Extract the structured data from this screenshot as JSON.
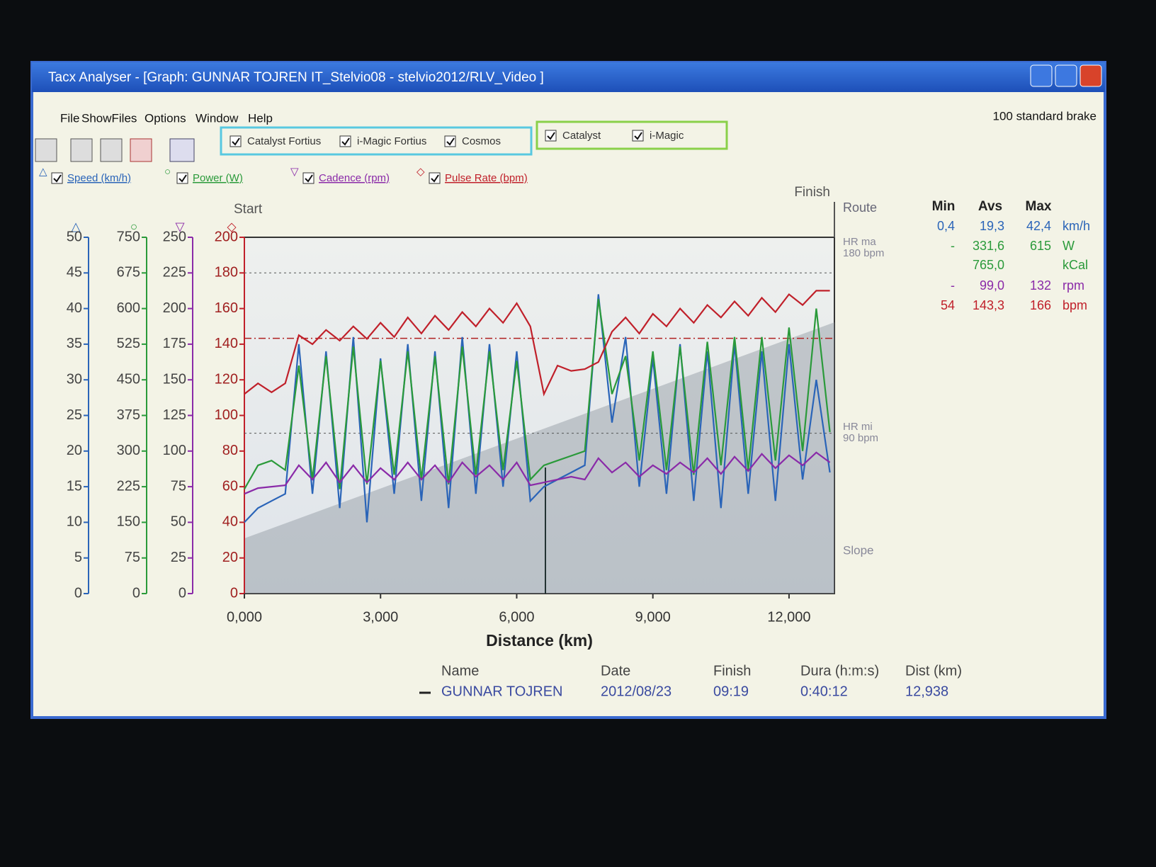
{
  "window": {
    "title": "Tacx Analyser - [Graph:   GUNNAR TOJREN  IT_Stelvio08 - stelvio2012/RLV_Video  ]",
    "menu": [
      "File",
      "ShowFiles",
      "Options",
      "Window",
      "Help"
    ],
    "brake": "100 standard brake",
    "filters": [
      "Catalyst Fortius",
      "i-Magic Fortius",
      "Cosmos",
      "Catalyst",
      "i-Magic"
    ],
    "channels": [
      {
        "symbol": "△",
        "label": "Speed (km/h)"
      },
      {
        "symbol": "○",
        "label": "Power (W)"
      },
      {
        "symbol": "▽",
        "label": "Cadence (rpm)"
      },
      {
        "symbol": "◇",
        "label": "Pulse Rate (bpm)"
      }
    ]
  },
  "chart_data": {
    "type": "line",
    "xlabel": "Distance (km)",
    "start_label": "Start",
    "finish_label": "Finish",
    "route_label": "Route",
    "hr_max_label": [
      "HR ma",
      "180 bpm"
    ],
    "hr_min_label": [
      "HR mi",
      "90 bpm"
    ],
    "slope_label": "Slope",
    "hr_max": 180,
    "hr_min": 90,
    "pulse_avg": 143.3,
    "xlim": [
      0,
      13
    ],
    "xticks": [
      {
        "value": 0,
        "label": "0,000"
      },
      {
        "value": 3,
        "label": "3,000"
      },
      {
        "value": 6,
        "label": "6,000"
      },
      {
        "value": 9,
        "label": "9,000"
      },
      {
        "value": 12,
        "label": "12,000"
      }
    ],
    "axes": [
      {
        "symbol": "△",
        "color": "#2a64b8",
        "ylim": [
          0,
          50
        ],
        "yticks": [
          0,
          5,
          10,
          15,
          20,
          25,
          30,
          35,
          40,
          45,
          50
        ]
      },
      {
        "symbol": "○",
        "color": "#2a9a3a",
        "ylim": [
          0,
          750
        ],
        "yticks": [
          0,
          75,
          150,
          225,
          300,
          375,
          450,
          525,
          600,
          675,
          750
        ]
      },
      {
        "symbol": "▽",
        "color": "#8a2aa8",
        "ylim": [
          0,
          250
        ],
        "yticks": [
          0,
          25,
          50,
          75,
          100,
          125,
          150,
          175,
          200,
          225,
          250
        ]
      },
      {
        "symbol": "◇",
        "color": "#c0202a",
        "ylim": [
          0,
          200
        ],
        "yticks": [
          0,
          20,
          40,
          60,
          80,
          100,
          120,
          140,
          160,
          180,
          200
        ]
      }
    ],
    "x": [
      0,
      0.3,
      0.6,
      0.9,
      1.2,
      1.5,
      1.8,
      2.1,
      2.4,
      2.7,
      3.0,
      3.3,
      3.6,
      3.9,
      4.2,
      4.5,
      4.8,
      5.1,
      5.4,
      5.7,
      6.0,
      6.3,
      6.6,
      6.9,
      7.2,
      7.5,
      7.8,
      8.1,
      8.4,
      8.7,
      9.0,
      9.3,
      9.6,
      9.9,
      10.2,
      10.5,
      10.8,
      11.1,
      11.4,
      11.7,
      12.0,
      12.3,
      12.6,
      12.9
    ],
    "series": [
      {
        "name": "Speed (km/h)",
        "axis": 0,
        "color": "#2a64b8",
        "values": [
          10,
          12,
          13,
          14,
          35,
          14,
          34,
          12,
          36,
          10,
          33,
          14,
          35,
          13,
          34,
          12,
          36,
          14,
          35,
          15,
          34,
          13,
          15,
          16,
          17,
          18,
          42,
          24,
          36,
          15,
          33,
          14,
          35,
          13,
          34,
          12,
          35,
          14,
          34,
          13,
          35,
          16,
          30,
          17
        ]
      },
      {
        "name": "Power (W)",
        "axis": 1,
        "color": "#2a9a3a",
        "values": [
          220,
          270,
          280,
          260,
          480,
          240,
          500,
          220,
          520,
          230,
          490,
          250,
          510,
          240,
          500,
          230,
          520,
          250,
          510,
          260,
          490,
          240,
          270,
          280,
          290,
          300,
          620,
          420,
          500,
          280,
          510,
          260,
          520,
          250,
          530,
          270,
          540,
          260,
          540,
          280,
          560,
          300,
          600,
          340
        ]
      },
      {
        "name": "Cadence (rpm)",
        "axis": 2,
        "color": "#8a2aa8",
        "values": [
          70,
          74,
          75,
          76,
          90,
          80,
          92,
          78,
          90,
          78,
          88,
          80,
          92,
          80,
          90,
          78,
          92,
          82,
          90,
          80,
          92,
          76,
          78,
          80,
          82,
          80,
          95,
          85,
          92,
          82,
          90,
          84,
          92,
          85,
          95,
          84,
          96,
          86,
          98,
          88,
          97,
          90,
          99,
          92
        ]
      },
      {
        "name": "Pulse Rate (bpm)",
        "axis": 3,
        "color": "#c0202a",
        "values": [
          112,
          118,
          113,
          118,
          145,
          140,
          148,
          142,
          150,
          143,
          152,
          144,
          155,
          146,
          156,
          148,
          158,
          150,
          160,
          152,
          163,
          150,
          112,
          128,
          125,
          126,
          130,
          147,
          155,
          146,
          157,
          150,
          160,
          152,
          162,
          155,
          164,
          156,
          166,
          158,
          168,
          162,
          170,
          170
        ]
      }
    ]
  },
  "stats": {
    "headers": [
      "Min",
      "Avs",
      "Max"
    ],
    "rows": [
      {
        "min": "0,4",
        "avg": "19,3",
        "max": "42,4",
        "unit": "km/h",
        "color": "#2a64b8"
      },
      {
        "min": "-",
        "avg": "331,6",
        "max": "615",
        "unit": "W",
        "color": "#2a9a3a"
      },
      {
        "avg": "765,0",
        "unit": "kCal",
        "color": "#2a9a3a"
      },
      {
        "min": "-",
        "avg": "99,0",
        "max": "132",
        "unit": "rpm",
        "color": "#8a2aa8"
      },
      {
        "min": "54",
        "avg": "143,3",
        "max": "166",
        "unit": "bpm",
        "color": "#c0202a"
      }
    ]
  },
  "footer": {
    "headers": [
      "Name",
      "Date",
      "Finish",
      "Dura (h:m:s)",
      "Dist (km)"
    ],
    "values": [
      "GUNNAR TOJREN",
      "2012/08/23",
      "09:19",
      "0:40:12",
      "12,938"
    ]
  }
}
